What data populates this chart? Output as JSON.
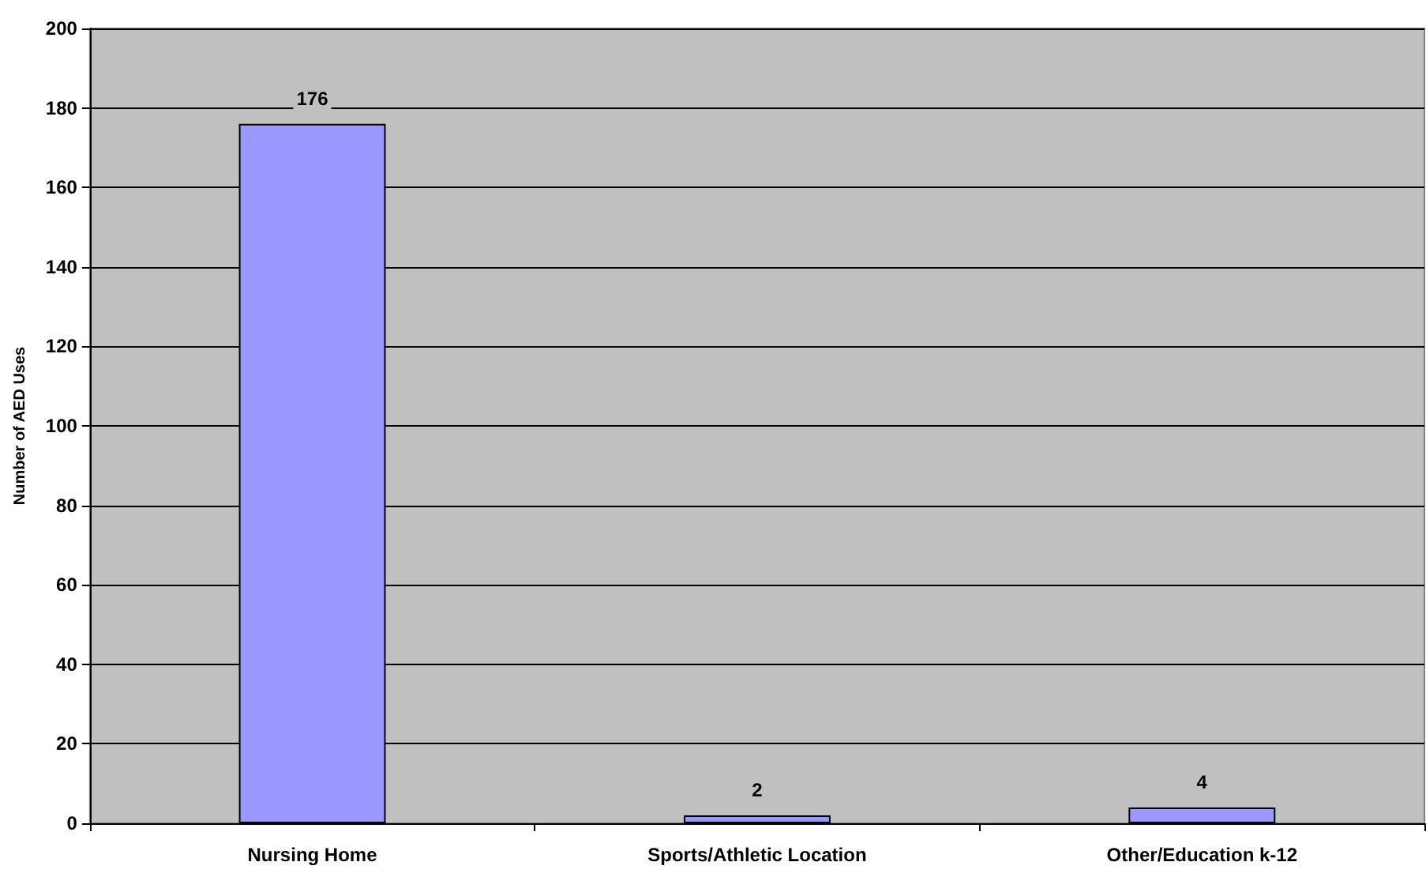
{
  "chart_data": {
    "type": "bar",
    "ylabel": "Number of AED Uses",
    "categories": [
      "Nursing Home",
      "Sports/Athletic Location",
      "Other/Education k-12"
    ],
    "values": [
      176,
      2,
      4
    ],
    "color": "#9999ff",
    "ylim": [
      0,
      200
    ],
    "yticks": [
      0,
      20,
      40,
      60,
      80,
      100,
      120,
      140,
      160,
      180,
      200
    ],
    "grid": "y",
    "data_labels": true
  }
}
